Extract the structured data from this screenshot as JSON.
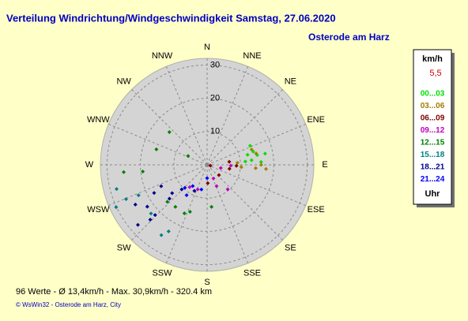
{
  "chart_data": {
    "type": "polar-scatter",
    "title": "Verteilung Windrichtung/Windgeschwindigkeit  Samstag, 27.06.2020",
    "subtitle": "Osterode am Harz",
    "directions": [
      "N",
      "NNE",
      "NE",
      "ENE",
      "E",
      "ESE",
      "SE",
      "SSE",
      "S",
      "SSW",
      "SW",
      "WSW",
      "W",
      "WNW",
      "NW",
      "NNW"
    ],
    "rlim": [
      0,
      32
    ],
    "rticks": [
      10,
      20,
      30
    ],
    "grid": true,
    "legend_title": "km/h",
    "legend_note": "5,5",
    "legend_footer": "Uhr",
    "series": [
      {
        "name": "00...03",
        "color": "#00e000",
        "directions": [
          66,
          74,
          76,
          79,
          79,
          85,
          84,
          87
        ],
        "values": [
          14.1,
          14.4,
          12.5,
          15.3,
          17.7,
          11.5,
          13.4,
          16.2
        ]
      },
      {
        "name": "03...06",
        "color": "#a08000",
        "directions": [
          71,
          77,
          90,
          94,
          94,
          94,
          86
        ],
        "values": [
          14.1,
          15.1,
          16.2,
          14.6,
          17.7,
          10.3,
          9.1
        ]
      },
      {
        "name": "06...09",
        "color": "#800000",
        "directions": [
          82,
          92,
          100,
          131,
          178,
          104
        ],
        "values": [
          6.7,
          8.8,
          6.8,
          4.7,
          5.5,
          1.0
        ]
      },
      {
        "name": "09...12",
        "color": "#c000c0",
        "directions": [
          103,
          155,
          140,
          201,
          218,
          156,
          92
        ],
        "values": [
          4.2,
          4.5,
          9.6,
          7.9,
          8.5,
          7.0,
          7.1
        ]
      },
      {
        "name": "12...15",
        "color": "#008000",
        "directions": [
          311,
          287,
          265,
          264,
          295,
          217,
          205,
          200,
          227,
          174
        ],
        "values": [
          15.0,
          15.9,
          25.1,
          19.4,
          6.3,
          15.8,
          16.1,
          15.0,
          16.3,
          12.7
        ]
      },
      {
        "name": "15...18",
        "color": "#008080",
        "directions": [
          255,
          245,
          246,
          229,
          213,
          210,
          247
        ],
        "values": [
          28.1,
          30.1,
          22.5,
          22.3,
          25.2,
          23.1,
          26.4
        ]
      },
      {
        "name": "18...21",
        "color": "#000090",
        "directions": [
          245,
          242,
          235,
          229,
          226,
          228,
          226,
          226,
          241,
          231,
          206
        ],
        "values": [
          15.2,
          18.0,
          21.9,
          27.5,
          23.7,
          15.2,
          10.6,
          21.7,
          24.6,
          13.5,
          8.7
        ]
      },
      {
        "name": "21...24",
        "color": "#0000ff",
        "directions": [
          214,
          193,
          224,
          180,
          214
        ],
        "values": [
          7.7,
          7.6,
          9.6,
          4.0,
          11.0
        ]
      }
    ],
    "footer_stats": "96 Werte   -   Ø 13,4km/h  -  Max. 30,9km/h  -  320.4 km",
    "footer_credit": "© WsWin32  -  Osterode am Harz, City"
  }
}
